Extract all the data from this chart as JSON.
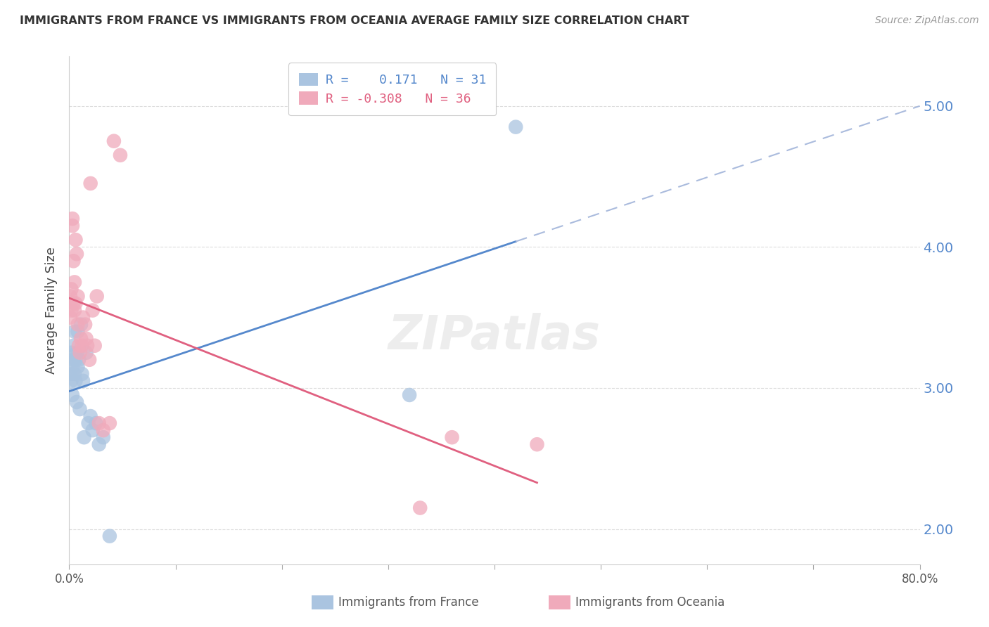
{
  "title": "IMMIGRANTS FROM FRANCE VS IMMIGRANTS FROM OCEANIA AVERAGE FAMILY SIZE CORRELATION CHART",
  "source": "Source: ZipAtlas.com",
  "ylabel": "Average Family Size",
  "xlim": [
    0.0,
    0.8
  ],
  "ylim": [
    1.75,
    5.35
  ],
  "yticks": [
    2.0,
    3.0,
    4.0,
    5.0
  ],
  "xticks": [
    0.0,
    0.1,
    0.2,
    0.3,
    0.4,
    0.5,
    0.6,
    0.7,
    0.8
  ],
  "background_color": "#ffffff",
  "grid_color": "#dddddd",
  "france_color": "#aac4e0",
  "oceania_color": "#f0aabb",
  "france_line_color": "#5588cc",
  "oceania_line_color": "#e06080",
  "france_R": 0.171,
  "france_N": 31,
  "oceania_R": -0.308,
  "oceania_N": 36,
  "france_scatter_x": [
    0.001,
    0.002,
    0.002,
    0.003,
    0.003,
    0.004,
    0.004,
    0.005,
    0.005,
    0.006,
    0.006,
    0.007,
    0.007,
    0.008,
    0.008,
    0.009,
    0.01,
    0.011,
    0.012,
    0.013,
    0.014,
    0.016,
    0.018,
    0.02,
    0.022,
    0.025,
    0.028,
    0.032,
    0.038,
    0.32,
    0.42
  ],
  "france_scatter_y": [
    3.1,
    3.25,
    3.05,
    3.15,
    2.95,
    3.2,
    3.3,
    3.1,
    3.4,
    3.05,
    3.2,
    3.25,
    2.9,
    3.15,
    3.4,
    3.2,
    2.85,
    3.45,
    3.1,
    3.05,
    2.65,
    3.25,
    2.75,
    2.8,
    2.7,
    2.75,
    2.6,
    2.65,
    1.95,
    2.95,
    4.85
  ],
  "oceania_scatter_x": [
    0.001,
    0.001,
    0.002,
    0.002,
    0.003,
    0.003,
    0.004,
    0.004,
    0.005,
    0.005,
    0.006,
    0.006,
    0.007,
    0.008,
    0.008,
    0.009,
    0.01,
    0.011,
    0.012,
    0.013,
    0.015,
    0.016,
    0.017,
    0.019,
    0.02,
    0.022,
    0.024,
    0.026,
    0.028,
    0.032,
    0.038,
    0.042,
    0.048,
    0.33,
    0.36,
    0.44
  ],
  "oceania_scatter_y": [
    3.5,
    3.65,
    3.55,
    3.7,
    4.2,
    4.15,
    3.9,
    3.6,
    3.75,
    3.55,
    3.6,
    4.05,
    3.95,
    3.65,
    3.45,
    3.3,
    3.25,
    3.35,
    3.3,
    3.5,
    3.45,
    3.35,
    3.3,
    3.2,
    4.45,
    3.55,
    3.3,
    3.65,
    2.75,
    2.7,
    2.75,
    4.75,
    4.65,
    2.15,
    2.65,
    2.6
  ]
}
